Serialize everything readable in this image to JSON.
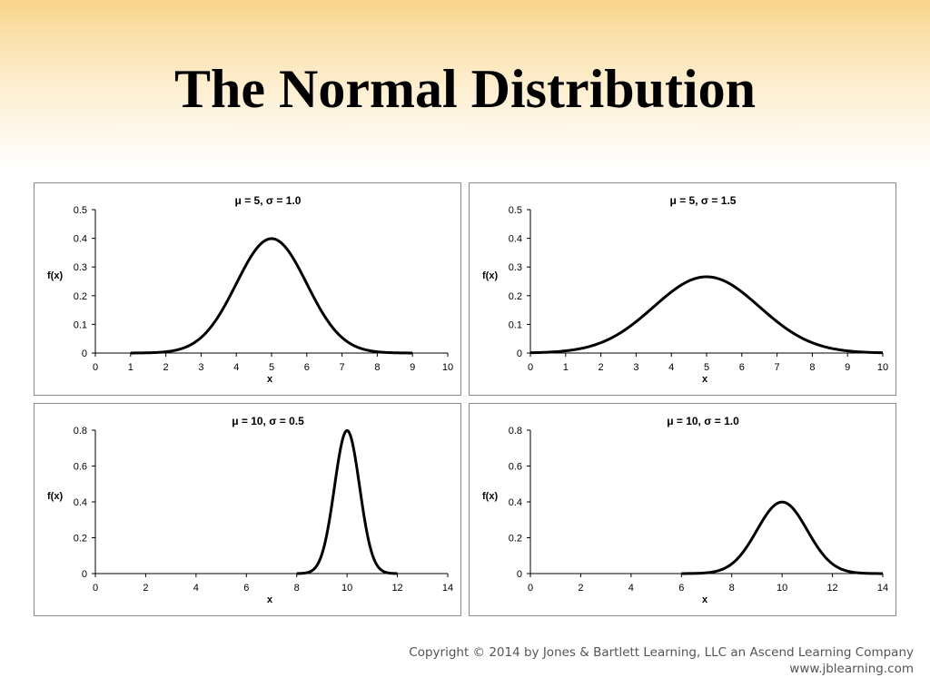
{
  "slide": {
    "title": "The Normal Distribution",
    "copyright": "Copyright © 2014 by Jones & Bartlett Learning, LLC an Ascend Learning Company",
    "website": "www.jblearning.com"
  },
  "chart_data": [
    {
      "type": "line",
      "title": "μ = 5, σ = 1.0",
      "xlabel": "x",
      "ylabel": "f(x)",
      "mu": 5,
      "sigma": 1.0,
      "xlim": [
        0,
        10
      ],
      "ylim": [
        0,
        0.5
      ],
      "x_range": [
        1,
        9
      ],
      "x_ticks": [
        0,
        1,
        2,
        3,
        4,
        5,
        6,
        7,
        8,
        9,
        10
      ],
      "y_ticks": [
        0,
        0.1,
        0.2,
        0.3,
        0.4,
        0.5
      ],
      "x_tick_labels": [
        "0",
        "1",
        "2",
        "3",
        "4",
        "5",
        "6",
        "7",
        "8",
        "9",
        "10"
      ],
      "y_tick_labels": [
        "0",
        "0.1",
        "0.2",
        "0.3",
        "0.4",
        "0.5"
      ],
      "grid": false,
      "line_color": "#000000"
    },
    {
      "type": "line",
      "title": "μ = 5, σ = 1.5",
      "xlabel": "x",
      "ylabel": "f(x)",
      "mu": 5,
      "sigma": 1.5,
      "xlim": [
        0,
        10
      ],
      "ylim": [
        0,
        0.5
      ],
      "x_range": [
        0,
        10
      ],
      "x_ticks": [
        0,
        1,
        2,
        3,
        4,
        5,
        6,
        7,
        8,
        9,
        10
      ],
      "y_ticks": [
        0,
        0.1,
        0.2,
        0.3,
        0.4,
        0.5
      ],
      "x_tick_labels": [
        "0",
        "1",
        "2",
        "3",
        "4",
        "5",
        "6",
        "7",
        "8",
        "9",
        "10"
      ],
      "y_tick_labels": [
        "0",
        "0.1",
        "0.2",
        "0.3",
        "0.4",
        "0.5"
      ],
      "grid": false,
      "line_color": "#000000"
    },
    {
      "type": "line",
      "title": "μ = 10, σ = 0.5",
      "xlabel": "x",
      "ylabel": "f(x)",
      "mu": 10,
      "sigma": 0.5,
      "xlim": [
        0,
        14
      ],
      "ylim": [
        0,
        0.8
      ],
      "x_range": [
        8,
        12
      ],
      "x_ticks": [
        0,
        2,
        4,
        6,
        8,
        10,
        12,
        14
      ],
      "y_ticks": [
        0,
        0.2,
        0.4,
        0.6,
        0.8
      ],
      "x_tick_labels": [
        "0",
        "2",
        "4",
        "6",
        "8",
        "10",
        "12",
        "14"
      ],
      "y_tick_labels": [
        "0",
        "0.2",
        "0.4",
        "0.6",
        "0.8"
      ],
      "grid": false,
      "line_color": "#000000"
    },
    {
      "type": "line",
      "title": "μ = 10, σ = 1.0",
      "xlabel": "x",
      "ylabel": "f(x)",
      "mu": 10,
      "sigma": 1.0,
      "xlim": [
        0,
        14
      ],
      "ylim": [
        0,
        0.8
      ],
      "x_range": [
        6,
        14
      ],
      "x_ticks": [
        0,
        2,
        4,
        6,
        8,
        10,
        12,
        14
      ],
      "y_ticks": [
        0,
        0.2,
        0.4,
        0.6,
        0.8
      ],
      "x_tick_labels": [
        "0",
        "2",
        "4",
        "6",
        "8",
        "10",
        "12",
        "14"
      ],
      "y_tick_labels": [
        "0",
        "0.2",
        "0.4",
        "0.6",
        "0.8"
      ],
      "grid": false,
      "line_color": "#000000"
    }
  ]
}
